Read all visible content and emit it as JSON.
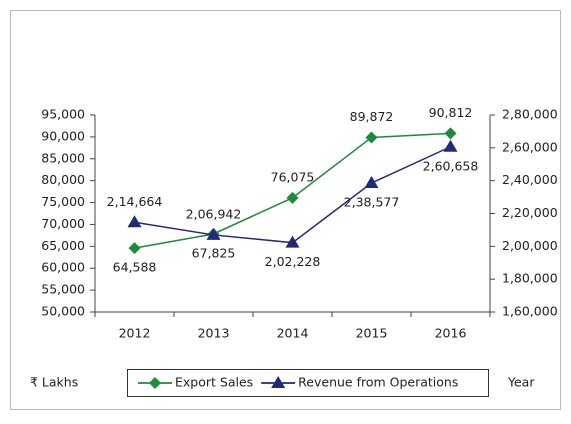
{
  "chart_data": {
    "type": "line",
    "categories": [
      "2012",
      "2013",
      "2014",
      "2015",
      "2016"
    ],
    "series": [
      {
        "name": "Export Sales",
        "color": "#1e8a3c",
        "marker": "diamond",
        "axis": "y",
        "values": [
          64588,
          67825,
          76075,
          89872,
          90812
        ],
        "value_labels": [
          "64,588",
          "67,825",
          "76,075",
          "89,872",
          "90,812"
        ]
      },
      {
        "name": "Revenue from Operations",
        "color": "#1f2a7a",
        "marker": "triangle",
        "axis": "y2",
        "values": [
          214664,
          206942,
          202228,
          238577,
          260658
        ],
        "value_labels": [
          "2,14,664",
          "2,06,942",
          "2,02,228",
          "2,38,577",
          "2,60,658"
        ]
      }
    ],
    "ylim": [
      50000,
      95000
    ],
    "yticks": [
      {
        "value": 50000,
        "label": "50,000"
      },
      {
        "value": 55000,
        "label": "55,000"
      },
      {
        "value": 60000,
        "label": "60,000"
      },
      {
        "value": 65000,
        "label": "65,000"
      },
      {
        "value": 70000,
        "label": "70,000"
      },
      {
        "value": 75000,
        "label": "75,000"
      },
      {
        "value": 80000,
        "label": "80,000"
      },
      {
        "value": 85000,
        "label": "85,000"
      },
      {
        "value": 90000,
        "label": "90,000"
      },
      {
        "value": 95000,
        "label": "95,000"
      }
    ],
    "y2lim": [
      160000,
      280000
    ],
    "y2ticks": [
      {
        "value": 160000,
        "label": "1,60,000"
      },
      {
        "value": 180000,
        "label": "1,80,000"
      },
      {
        "value": 200000,
        "label": "2,00,000"
      },
      {
        "value": 220000,
        "label": "2,20,000"
      },
      {
        "value": 240000,
        "label": "2,40,000"
      },
      {
        "value": 260000,
        "label": "2,60,000"
      },
      {
        "value": 280000,
        "label": "2,80,000"
      }
    ],
    "ylabel": "₹ Lakhs",
    "xlabel": "Year",
    "grid": false,
    "legend": "bottom"
  }
}
